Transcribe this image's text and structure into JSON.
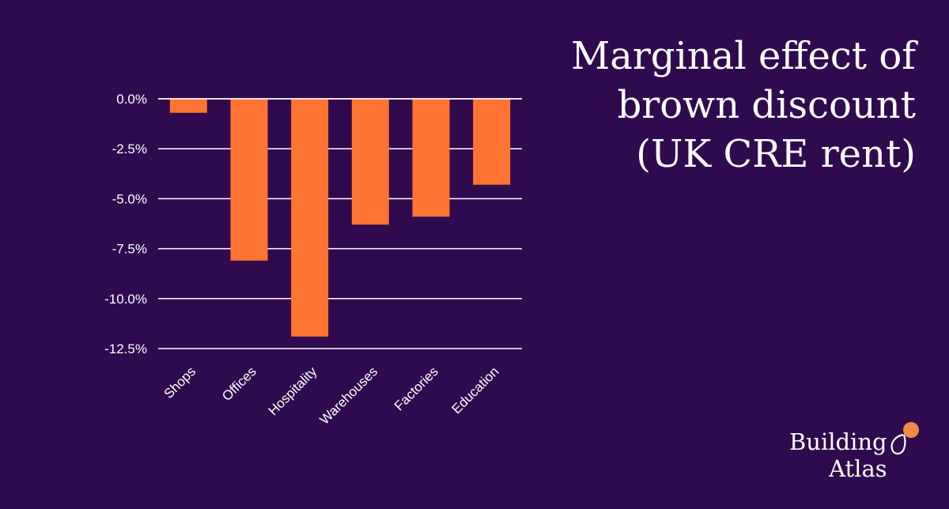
{
  "title_lines": [
    "Marginal effect of",
    "brown discount",
    "(UK CRE rent)"
  ],
  "logo": {
    "line1": "Building",
    "line2": "Atlas"
  },
  "colors": {
    "background": "#300a4f",
    "bar": "#ff7433",
    "grid": "#ffffff",
    "text": "#ffffff",
    "logo_dot": "#f08a4b"
  },
  "chart_data": {
    "type": "bar",
    "title": "Marginal effect of brown discount (UK CRE rent)",
    "xlabel": "",
    "ylabel": "",
    "categories": [
      "Shops",
      "Offices",
      "Hospitality",
      "Warehouses",
      "Factories",
      "Education"
    ],
    "values": [
      -0.7,
      -8.1,
      -11.9,
      -6.3,
      -5.9,
      -4.3
    ],
    "ylim": [
      -12.5,
      0
    ],
    "yticks": [
      0,
      -2.5,
      -5,
      -7.5,
      -10,
      -12.5
    ],
    "ytick_labels": [
      "0.0%",
      "-2.5%",
      "-5.0%",
      "-7.5%",
      "-10.0%",
      "-12.5%"
    ],
    "grid": true
  }
}
